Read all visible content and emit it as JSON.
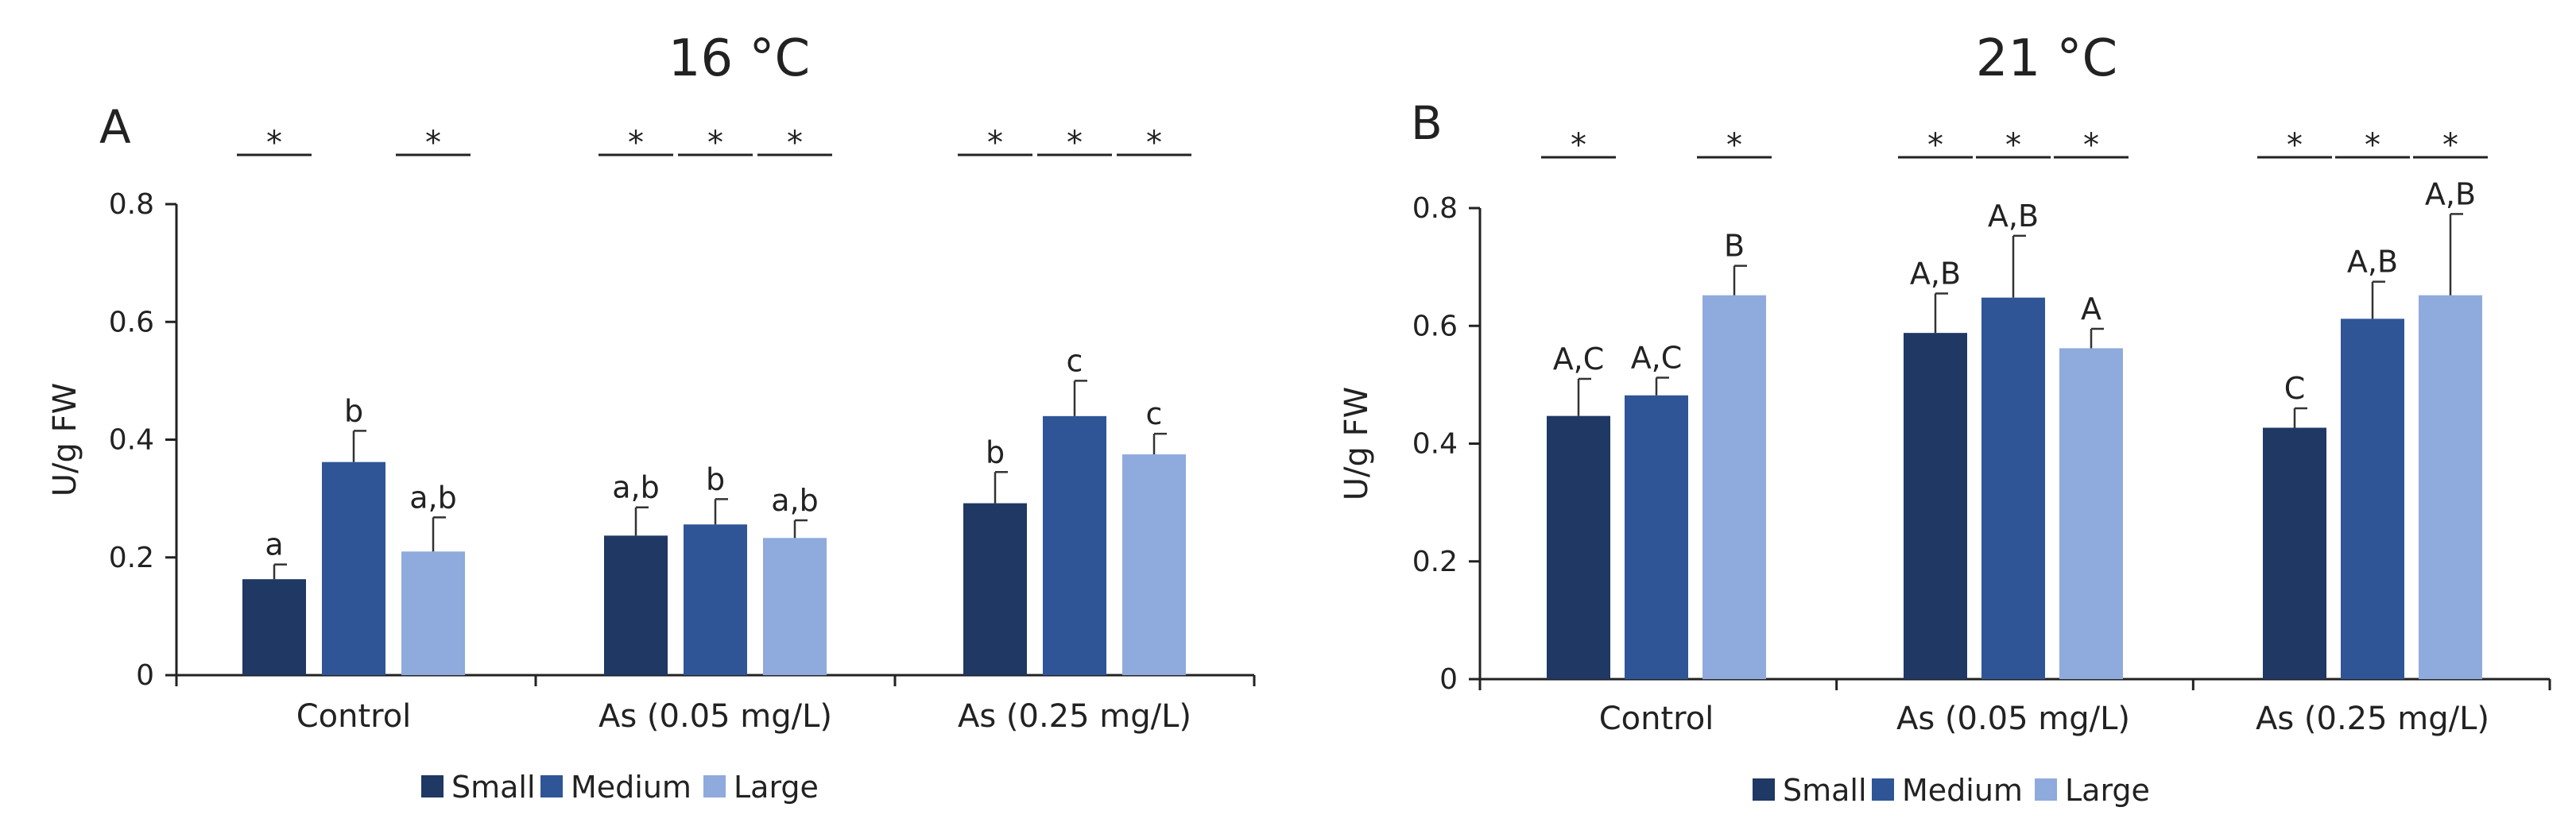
{
  "chart_data": [
    {
      "type": "bar",
      "panel": "A",
      "title": "16 °C",
      "ylabel": "U/g FW",
      "xlabel": "",
      "ylim": [
        0,
        0.8
      ],
      "yticks": [
        "0",
        "0.2",
        "0.4",
        "0.6",
        "0.8"
      ],
      "categories": [
        "Control",
        "As (0.05 mg/L)",
        "As (0.25 mg/L)"
      ],
      "series": [
        {
          "name": "Small",
          "color": "#1f3864",
          "values": [
            0.163,
            0.237,
            0.292
          ],
          "errors": [
            0.025,
            0.048,
            0.053
          ],
          "labels": [
            "a",
            "a,b",
            "b"
          ]
        },
        {
          "name": "Medium",
          "color": "#2f5597",
          "values": [
            0.362,
            0.256,
            0.44
          ],
          "errors": [
            0.053,
            0.043,
            0.06
          ],
          "labels": [
            "b",
            "b",
            "c"
          ]
        },
        {
          "name": "Large",
          "color": "#8faadc",
          "values": [
            0.21,
            0.233,
            0.375
          ],
          "errors": [
            0.058,
            0.03,
            0.035
          ],
          "labels": [
            "a,b",
            "a,b",
            "c"
          ]
        }
      ],
      "significance": [
        {
          "category": 0,
          "pairs": [
            0,
            2
          ]
        },
        {
          "category": 1,
          "pairs": [
            0,
            1,
            2
          ]
        },
        {
          "category": 2,
          "pairs": [
            0,
            1,
            2
          ]
        }
      ],
      "significance_symbol": "*"
    },
    {
      "type": "bar",
      "panel": "B",
      "title": "21 °C",
      "ylabel": "U/g FW",
      "xlabel": "",
      "ylim": [
        0,
        0.8
      ],
      "yticks": [
        "0",
        "0.2",
        "0.4",
        "0.6",
        "0.8"
      ],
      "categories": [
        "Control",
        "As (0.05 mg/L)",
        "As (0.25 mg/L)"
      ],
      "series": [
        {
          "name": "Small",
          "color": "#1f3864",
          "values": [
            0.447,
            0.588,
            0.427
          ],
          "errors": [
            0.063,
            0.067,
            0.033
          ],
          "labels": [
            "A,C",
            "A,B",
            "C"
          ]
        },
        {
          "name": "Medium",
          "color": "#2f5597",
          "values": [
            0.482,
            0.648,
            0.612
          ],
          "errors": [
            0.03,
            0.105,
            0.063
          ],
          "labels": [
            "A,C",
            "A,B",
            "A,B"
          ]
        },
        {
          "name": "Large",
          "color": "#8faadc",
          "values": [
            0.652,
            0.562,
            0.652
          ],
          "errors": [
            0.05,
            0.033,
            0.138
          ],
          "labels": [
            "B",
            "A",
            "A,B"
          ]
        }
      ],
      "significance": [
        {
          "category": 0,
          "pairs": [
            0,
            2
          ]
        },
        {
          "category": 1,
          "pairs": [
            0,
            1,
            2
          ]
        },
        {
          "category": 2,
          "pairs": [
            0,
            1,
            2
          ]
        }
      ],
      "significance_symbol": "*"
    }
  ]
}
